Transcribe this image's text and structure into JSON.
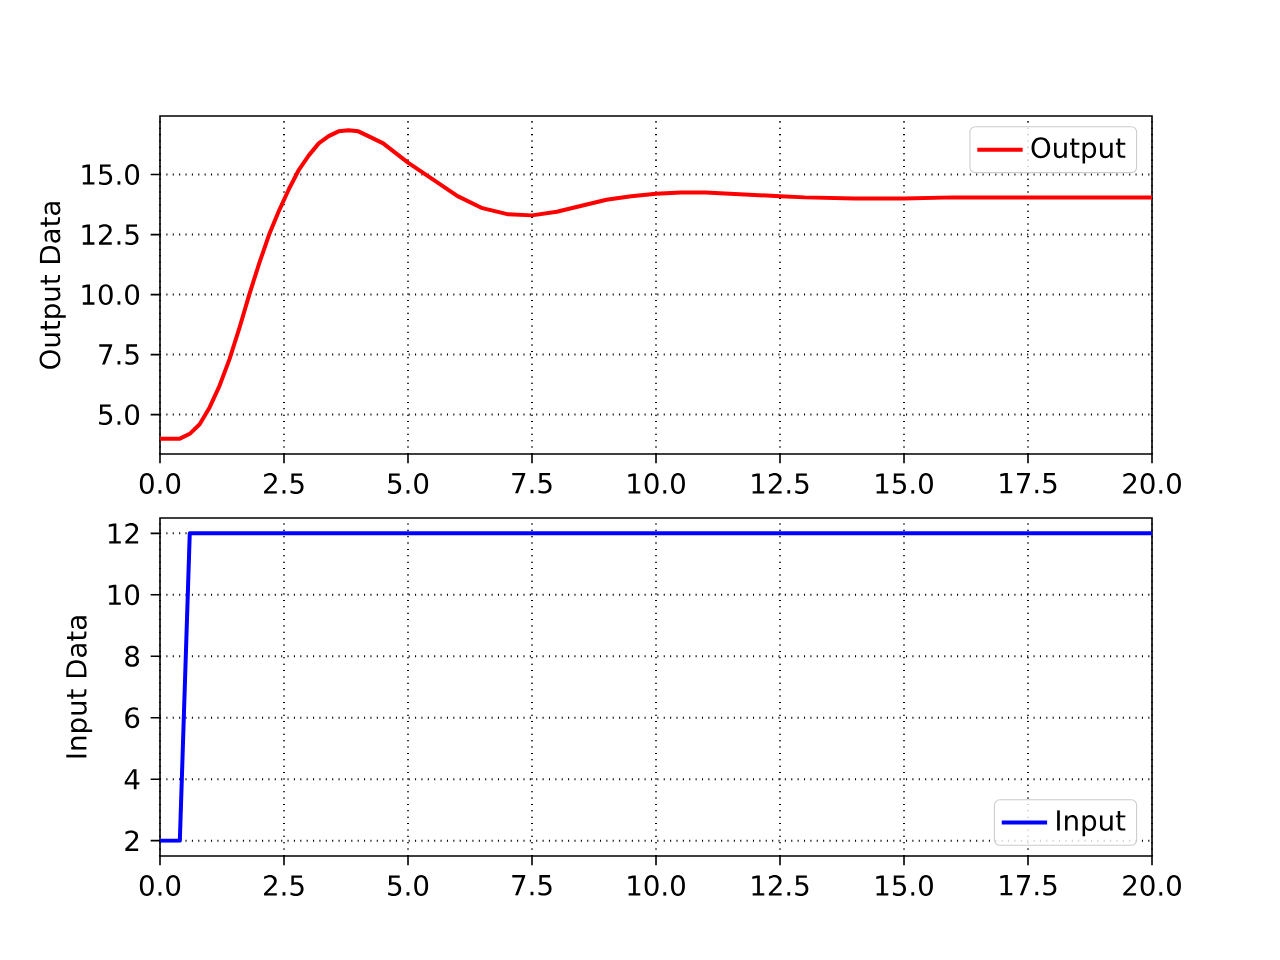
{
  "chart_data": [
    {
      "type": "line",
      "ylabel": "Output Data",
      "grid": true,
      "legend": "top right",
      "x": [
        0,
        0.4,
        0.6,
        0.8,
        1.0,
        1.2,
        1.4,
        1.6,
        1.8,
        2.0,
        2.2,
        2.4,
        2.6,
        2.8,
        3.0,
        3.2,
        3.4,
        3.6,
        3.8,
        4.0,
        4.2,
        4.5,
        5.0,
        5.5,
        6.0,
        6.5,
        7.0,
        7.5,
        8.0,
        8.5,
        9.0,
        9.5,
        10.0,
        10.5,
        11.0,
        11.5,
        12.0,
        12.5,
        13.0,
        14.0,
        15.0,
        16.0,
        18.0,
        20.0
      ],
      "series": [
        {
          "name": "Output",
          "color": "#ff0000",
          "values": [
            4.0,
            4.0,
            4.2,
            4.6,
            5.3,
            6.2,
            7.3,
            8.6,
            10.0,
            11.3,
            12.5,
            13.5,
            14.4,
            15.2,
            15.8,
            16.3,
            16.6,
            16.8,
            16.85,
            16.8,
            16.6,
            16.3,
            15.5,
            14.8,
            14.1,
            13.6,
            13.35,
            13.3,
            13.45,
            13.7,
            13.95,
            14.1,
            14.2,
            14.25,
            14.25,
            14.2,
            14.15,
            14.1,
            14.05,
            14.0,
            14.0,
            14.05,
            14.05,
            14.05
          ]
        }
      ],
      "xlim": [
        0,
        20
      ],
      "ylim": [
        3.36,
        17.44
      ],
      "xticks": [
        {
          "value": 0,
          "label": "0.0"
        },
        {
          "value": 2.5,
          "label": "2.5"
        },
        {
          "value": 5,
          "label": "5.0"
        },
        {
          "value": 7.5,
          "label": "7.5"
        },
        {
          "value": 10,
          "label": "10.0"
        },
        {
          "value": 12.5,
          "label": "12.5"
        },
        {
          "value": 15,
          "label": "15.0"
        },
        {
          "value": 17.5,
          "label": "17.5"
        },
        {
          "value": 20,
          "label": "20.0"
        }
      ],
      "yticks": [
        {
          "value": 5,
          "label": "5.0"
        },
        {
          "value": 7.5,
          "label": "7.5"
        },
        {
          "value": 10,
          "label": "10.0"
        },
        {
          "value": 12.5,
          "label": "12.5"
        },
        {
          "value": 15,
          "label": "15.0"
        }
      ]
    },
    {
      "type": "line",
      "ylabel": "Input Data",
      "grid": true,
      "legend": "bottom right",
      "x": [
        0,
        0.4,
        0.6,
        20
      ],
      "series": [
        {
          "name": "Input",
          "color": "#0000ff",
          "values": [
            2,
            2,
            12,
            12
          ]
        }
      ],
      "xlim": [
        0,
        20
      ],
      "ylim": [
        1.5,
        12.5
      ],
      "xticks": [
        {
          "value": 0,
          "label": "0.0"
        },
        {
          "value": 2.5,
          "label": "2.5"
        },
        {
          "value": 5,
          "label": "5.0"
        },
        {
          "value": 7.5,
          "label": "7.5"
        },
        {
          "value": 10,
          "label": "10.0"
        },
        {
          "value": 12.5,
          "label": "12.5"
        },
        {
          "value": 15,
          "label": "15.0"
        },
        {
          "value": 17.5,
          "label": "17.5"
        },
        {
          "value": 20,
          "label": "20.0"
        }
      ],
      "yticks": [
        2,
        4,
        6,
        8,
        10,
        12
      ]
    }
  ]
}
